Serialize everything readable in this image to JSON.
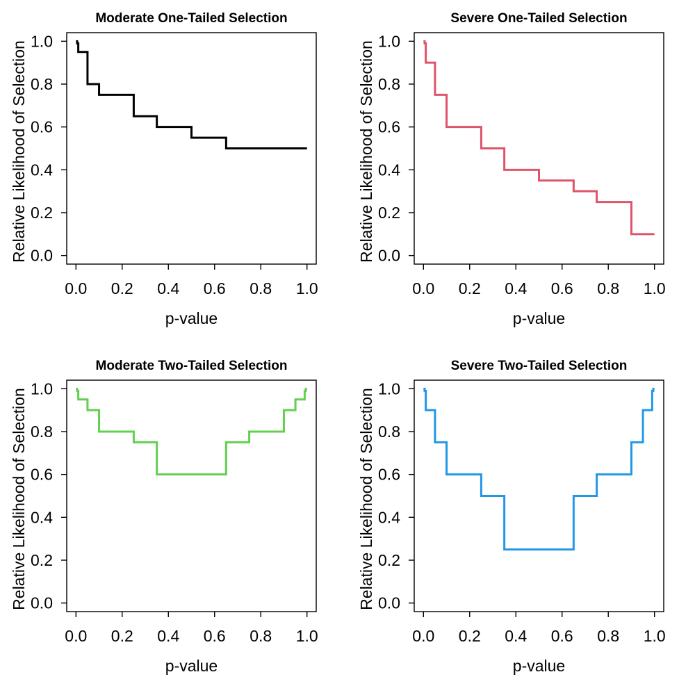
{
  "figure": {
    "background_color": "#FFFFFF",
    "grid_layout": "2x2",
    "axis_color": "#000000",
    "line_width": 3
  },
  "chart_data": [
    {
      "type": "line",
      "line_style": "step",
      "title": "Moderate One-Tailed Selection",
      "xlabel": "p-value",
      "ylabel": "Relative Likelihood of Selection",
      "line_color": "#000000",
      "xlim": [
        0,
        1
      ],
      "ylim": [
        0,
        1
      ],
      "grid": false,
      "legend": "none",
      "xticks": [
        "0.0",
        "0.2",
        "0.4",
        "0.6",
        "0.8",
        "1.0"
      ],
      "yticks": [
        "0.0",
        "0.2",
        "0.4",
        "0.6",
        "0.8",
        "1.0"
      ],
      "p_value_cutpoints": [
        0,
        0.005,
        0.01,
        0.05,
        0.1,
        0.25,
        0.35,
        0.5,
        0.65,
        0.75,
        0.9,
        0.95,
        0.99,
        0.995,
        1.0
      ],
      "selection_weights": [
        1.0,
        0.99,
        0.95,
        0.8,
        0.75,
        0.65,
        0.6,
        0.55,
        0.5,
        0.5,
        0.5,
        0.5,
        0.5,
        0.5
      ]
    },
    {
      "type": "line",
      "line_style": "step",
      "title": "Severe One-Tailed Selection",
      "xlabel": "p-value",
      "ylabel": "Relative Likelihood of Selection",
      "line_color": "#DF536B",
      "xlim": [
        0,
        1
      ],
      "ylim": [
        0,
        1
      ],
      "grid": false,
      "legend": "none",
      "xticks": [
        "0.0",
        "0.2",
        "0.4",
        "0.6",
        "0.8",
        "1.0"
      ],
      "yticks": [
        "0.0",
        "0.2",
        "0.4",
        "0.6",
        "0.8",
        "1.0"
      ],
      "p_value_cutpoints": [
        0,
        0.005,
        0.01,
        0.05,
        0.1,
        0.25,
        0.35,
        0.5,
        0.65,
        0.75,
        0.9,
        0.95,
        0.99,
        0.995,
        1.0
      ],
      "selection_weights": [
        1.0,
        0.99,
        0.9,
        0.75,
        0.6,
        0.5,
        0.4,
        0.35,
        0.3,
        0.25,
        0.1,
        0.1,
        0.1,
        0.1
      ]
    },
    {
      "type": "line",
      "line_style": "step",
      "title": "Moderate Two-Tailed Selection",
      "xlabel": "p-value",
      "ylabel": "Relative Likelihood of Selection",
      "line_color": "#61D04F",
      "xlim": [
        0,
        1
      ],
      "ylim": [
        0,
        1
      ],
      "grid": false,
      "legend": "none",
      "xticks": [
        "0.0",
        "0.2",
        "0.4",
        "0.6",
        "0.8",
        "1.0"
      ],
      "yticks": [
        "0.0",
        "0.2",
        "0.4",
        "0.6",
        "0.8",
        "1.0"
      ],
      "p_value_cutpoints": [
        0,
        0.005,
        0.01,
        0.05,
        0.1,
        0.25,
        0.35,
        0.5,
        0.65,
        0.75,
        0.9,
        0.95,
        0.99,
        0.995,
        1.0
      ],
      "selection_weights": [
        1.0,
        0.99,
        0.95,
        0.9,
        0.8,
        0.75,
        0.6,
        0.6,
        0.75,
        0.8,
        0.9,
        0.95,
        0.99,
        1.0
      ]
    },
    {
      "type": "line",
      "line_style": "step",
      "title": "Severe Two-Tailed Selection",
      "xlabel": "p-value",
      "ylabel": "Relative Likelihood of Selection",
      "line_color": "#2297E6",
      "xlim": [
        0,
        1
      ],
      "ylim": [
        0,
        1
      ],
      "grid": false,
      "legend": "none",
      "xticks": [
        "0.0",
        "0.2",
        "0.4",
        "0.6",
        "0.8",
        "1.0"
      ],
      "yticks": [
        "0.0",
        "0.2",
        "0.4",
        "0.6",
        "0.8",
        "1.0"
      ],
      "p_value_cutpoints": [
        0,
        0.005,
        0.01,
        0.05,
        0.1,
        0.25,
        0.35,
        0.5,
        0.65,
        0.75,
        0.9,
        0.95,
        0.99,
        0.995,
        1.0
      ],
      "selection_weights": [
        1.0,
        0.99,
        0.9,
        0.75,
        0.6,
        0.5,
        0.25,
        0.25,
        0.5,
        0.6,
        0.75,
        0.9,
        0.99,
        1.0
      ]
    }
  ]
}
